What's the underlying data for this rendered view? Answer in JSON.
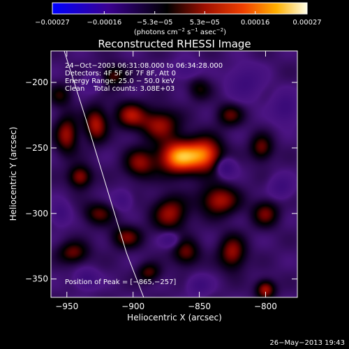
{
  "chart_data": {
    "type": "heatmap",
    "title": "Reconstructed RHESSI Image",
    "xlabel": "Heliocentric X (arcsec)",
    "ylabel": "Heliocentric Y (arcsec)",
    "xlim": [
      -962,
      -776
    ],
    "ylim": [
      -364,
      -176
    ],
    "x_ticks": [
      {
        "value": -950,
        "label": "−950"
      },
      {
        "value": -900,
        "label": "−900"
      },
      {
        "value": -850,
        "label": "−850"
      },
      {
        "value": -800,
        "label": "−800"
      }
    ],
    "y_ticks": [
      {
        "value": -200,
        "label": "−200"
      },
      {
        "value": -250,
        "label": "−250"
      },
      {
        "value": -300,
        "label": "−300"
      },
      {
        "value": -350,
        "label": "−350"
      }
    ],
    "colorbar": {
      "range": [
        -0.00027,
        0.00027
      ],
      "ticks": [
        {
          "value": -0.00027,
          "label": "−0.00027"
        },
        {
          "value": -0.00016,
          "label": "−0.00016"
        },
        {
          "value": -5.3e-05,
          "label": "−5.3e−05"
        },
        {
          "value": 5.3e-05,
          "label": "5.3e−05"
        },
        {
          "value": 0.00016,
          "label": "0.00016"
        },
        {
          "value": 0.00027,
          "label": "0.00027"
        }
      ],
      "unit_main": "(photons cm",
      "unit_sup1": "−2",
      "unit_mid": " s",
      "unit_sup2": "−1",
      "unit_mid2": " asec",
      "unit_sup3": "−2",
      "unit_end": ")"
    },
    "info_lines": [
      "24−Oct−2003 06:31:08.000 to 06:34:28.000",
      "Detectors: 4F 5F 6F 7F 8F, Att 0",
      "Energy Range: 25.0 − 50.0 keV",
      "Clean    Total counts: 3.08E+03"
    ],
    "peak_label": "Position of Peak = [−865,−257]",
    "peak": {
      "x": -865,
      "y": -257
    },
    "limb_curve": [
      [
        -952,
        -176
      ],
      [
        -935,
        -230
      ],
      [
        -920,
        -280
      ],
      [
        -905,
        -330
      ],
      [
        -892,
        -364
      ]
    ],
    "blobs": [
      {
        "x": -865,
        "y": -257,
        "sx": 11,
        "sy": 9,
        "v": 1.0
      },
      {
        "x": -845,
        "y": -255,
        "sx": 9,
        "sy": 9,
        "v": 0.75
      },
      {
        "x": -880,
        "y": -232,
        "sx": 10,
        "sy": 8,
        "v": 0.55
      },
      {
        "x": -872,
        "y": -300,
        "sx": 9,
        "sy": 9,
        "v": 0.55
      },
      {
        "x": -895,
        "y": -262,
        "sx": 8,
        "sy": 8,
        "v": 0.5
      },
      {
        "x": -902,
        "y": -225,
        "sx": 8,
        "sy": 7,
        "v": 0.55
      },
      {
        "x": -928,
        "y": -232,
        "sx": 6,
        "sy": 9,
        "v": 0.6
      },
      {
        "x": -950,
        "y": -240,
        "sx": 6,
        "sy": 10,
        "v": 0.55
      },
      {
        "x": -940,
        "y": -272,
        "sx": 6,
        "sy": 6,
        "v": 0.55
      },
      {
        "x": -926,
        "y": -300,
        "sx": 8,
        "sy": 6,
        "v": 0.4
      },
      {
        "x": -945,
        "y": -330,
        "sx": 8,
        "sy": 6,
        "v": 0.45
      },
      {
        "x": -905,
        "y": -318,
        "sx": 8,
        "sy": 6,
        "v": 0.45
      },
      {
        "x": -888,
        "y": -345,
        "sx": 6,
        "sy": 5,
        "v": 0.4
      },
      {
        "x": -860,
        "y": -330,
        "sx": 7,
        "sy": 7,
        "v": 0.45
      },
      {
        "x": -835,
        "y": -290,
        "sx": 10,
        "sy": 8,
        "v": 0.6
      },
      {
        "x": -825,
        "y": -330,
        "sx": 7,
        "sy": 9,
        "v": 0.55
      },
      {
        "x": -800,
        "y": -358,
        "sx": 5,
        "sy": 5,
        "v": 0.6
      },
      {
        "x": -800,
        "y": -300,
        "sx": 7,
        "sy": 7,
        "v": 0.45
      },
      {
        "x": -803,
        "y": -250,
        "sx": 6,
        "sy": 7,
        "v": 0.45
      },
      {
        "x": -827,
        "y": -225,
        "sx": 7,
        "sy": 6,
        "v": 0.4
      },
      {
        "x": -915,
        "y": -195,
        "sx": 7,
        "sy": 6,
        "v": 0.4
      },
      {
        "x": -955,
        "y": -210,
        "sx": 6,
        "sy": 6,
        "v": 0.3
      },
      {
        "x": -850,
        "y": -205,
        "sx": 6,
        "sy": 6,
        "v": 0.3
      },
      {
        "x": -935,
        "y": -350,
        "sx": 6,
        "sy": 5,
        "v": -0.4
      },
      {
        "x": -830,
        "y": -265,
        "sx": 5,
        "sy": 5,
        "v": -0.5
      },
      {
        "x": -815,
        "y": -200,
        "sx": 9,
        "sy": 9,
        "v": -0.35
      },
      {
        "x": -785,
        "y": -220,
        "sx": 7,
        "sy": 8,
        "v": -0.4
      },
      {
        "x": -788,
        "y": -280,
        "sx": 6,
        "sy": 6,
        "v": -0.35
      },
      {
        "x": -860,
        "y": -190,
        "sx": 7,
        "sy": 5,
        "v": -0.3
      },
      {
        "x": -872,
        "y": -320,
        "sx": 5,
        "sy": 4,
        "v": -0.35
      },
      {
        "x": -908,
        "y": -290,
        "sx": 5,
        "sy": 5,
        "v": -0.3
      },
      {
        "x": -955,
        "y": -300,
        "sx": 5,
        "sy": 6,
        "v": -0.35
      },
      {
        "x": -850,
        "y": -355,
        "sx": 6,
        "sy": 5,
        "v": -0.35
      },
      {
        "x": -930,
        "y": -200,
        "sx": 5,
        "sy": 5,
        "v": -0.3
      }
    ]
  },
  "footer": {
    "timestamp": "26−May−2013 19:43"
  }
}
